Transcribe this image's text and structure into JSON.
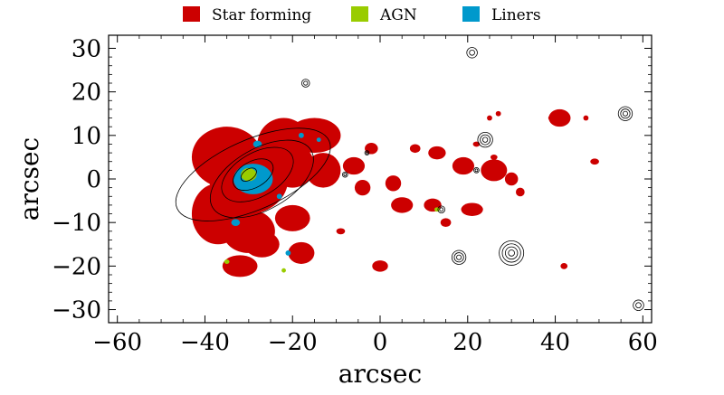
{
  "chart_data": {
    "type": "scatter",
    "xlabel": "arcsec",
    "ylabel": "arcsec",
    "xlim": [
      -62,
      62
    ],
    "ylim": [
      -33,
      33
    ],
    "xticks": [
      -60,
      -40,
      -20,
      0,
      20,
      40,
      60
    ],
    "yticks": [
      -30,
      -20,
      -10,
      0,
      10,
      20,
      30
    ],
    "xtick_labels": [
      "−60",
      "−40",
      "−20",
      "0",
      "20",
      "40",
      "60"
    ],
    "ytick_labels": [
      "−30",
      "−20",
      "−10",
      "0",
      "10",
      "20",
      "30"
    ],
    "legend": {
      "placement": "top-center",
      "entries": [
        {
          "name": "Star forming",
          "color": "#cc0000"
        },
        {
          "name": "AGN",
          "color": "#99cc00"
        },
        {
          "name": "Liners",
          "color": "#0099cc"
        }
      ]
    },
    "colors": {
      "star_forming": "#cc0000",
      "agn": "#99cc00",
      "liners": "#0099cc",
      "contour": "#000000"
    },
    "regions": {
      "star_forming": [
        {
          "x": -35,
          "y": 5,
          "rx": 8,
          "ry": 7
        },
        {
          "x": -30,
          "y": 0,
          "rx": 9,
          "ry": 8
        },
        {
          "x": -22,
          "y": 8,
          "rx": 6,
          "ry": 6
        },
        {
          "x": -15,
          "y": 10,
          "rx": 6,
          "ry": 4
        },
        {
          "x": -20,
          "y": 3,
          "rx": 5,
          "ry": 5
        },
        {
          "x": -13,
          "y": 2,
          "rx": 4,
          "ry": 4
        },
        {
          "x": -37,
          "y": -8,
          "rx": 6,
          "ry": 7
        },
        {
          "x": -30,
          "y": -12,
          "rx": 6,
          "ry": 5
        },
        {
          "x": -20,
          "y": -9,
          "rx": 4,
          "ry": 3
        },
        {
          "x": -32,
          "y": -20,
          "rx": 4,
          "ry": 2.5
        },
        {
          "x": -18,
          "y": -17,
          "rx": 3,
          "ry": 2.5
        },
        {
          "x": -27,
          "y": -15,
          "rx": 4,
          "ry": 3
        },
        {
          "x": -6,
          "y": 3,
          "rx": 2.5,
          "ry": 2
        },
        {
          "x": -4,
          "y": -2,
          "rx": 1.8,
          "ry": 1.8
        },
        {
          "x": -2,
          "y": 7,
          "rx": 1.5,
          "ry": 1.3
        },
        {
          "x": 3,
          "y": -1,
          "rx": 1.8,
          "ry": 1.8
        },
        {
          "x": 5,
          "y": -6,
          "rx": 2.5,
          "ry": 1.8
        },
        {
          "x": 8,
          "y": 7,
          "rx": 1.2,
          "ry": 1
        },
        {
          "x": 13,
          "y": 6,
          "rx": 2,
          "ry": 1.5
        },
        {
          "x": 12,
          "y": -6,
          "rx": 2,
          "ry": 1.5
        },
        {
          "x": 15,
          "y": -10,
          "rx": 1.2,
          "ry": 1
        },
        {
          "x": 19,
          "y": 3,
          "rx": 2.5,
          "ry": 2
        },
        {
          "x": 21,
          "y": -7,
          "rx": 2.5,
          "ry": 1.5
        },
        {
          "x": 26,
          "y": 2,
          "rx": 3,
          "ry": 2.5
        },
        {
          "x": 30,
          "y": 0,
          "rx": 1.5,
          "ry": 1.5
        },
        {
          "x": 32,
          "y": -3,
          "rx": 1,
          "ry": 1
        },
        {
          "x": 41,
          "y": 14,
          "rx": 2.5,
          "ry": 2
        },
        {
          "x": 0,
          "y": -20,
          "rx": 1.8,
          "ry": 1.3
        },
        {
          "x": 25,
          "y": 14,
          "rx": 0.6,
          "ry": 0.6
        },
        {
          "x": 27,
          "y": 15,
          "rx": 0.6,
          "ry": 0.6
        },
        {
          "x": 39,
          "y": 14,
          "rx": 0.6,
          "ry": 0.6
        },
        {
          "x": 47,
          "y": 14,
          "rx": 0.6,
          "ry": 0.6
        },
        {
          "x": 49,
          "y": 4,
          "rx": 1,
          "ry": 0.7
        },
        {
          "x": 42,
          "y": -20,
          "rx": 0.8,
          "ry": 0.7
        },
        {
          "x": 22,
          "y": 8,
          "rx": 0.8,
          "ry": 0.6
        },
        {
          "x": 26,
          "y": 5,
          "rx": 0.8,
          "ry": 0.6
        },
        {
          "x": -11,
          "y": 9,
          "rx": 1,
          "ry": 0.8
        },
        {
          "x": -9,
          "y": -12,
          "rx": 1,
          "ry": 0.7
        }
      ],
      "liners": [
        {
          "x": -29,
          "y": 0,
          "rx": 4.5,
          "ry": 3.5
        },
        {
          "x": -28,
          "y": 8,
          "rx": 1,
          "ry": 0.8
        },
        {
          "x": -33,
          "y": -10,
          "rx": 1,
          "ry": 0.8
        },
        {
          "x": -18,
          "y": 10,
          "rx": 0.6,
          "ry": 0.6
        },
        {
          "x": -21,
          "y": -17,
          "rx": 0.6,
          "ry": 0.6
        },
        {
          "x": -23,
          "y": -4,
          "rx": 0.6,
          "ry": 0.6
        },
        {
          "x": -14,
          "y": 9,
          "rx": 0.5,
          "ry": 0.5
        }
      ],
      "agn": [
        {
          "x": -30,
          "y": 1,
          "rx": 1.8,
          "ry": 1.5
        },
        {
          "x": 13,
          "y": -7,
          "rx": 0.6,
          "ry": 0.5
        },
        {
          "x": -35,
          "y": -19,
          "rx": 0.6,
          "ry": 0.5
        },
        {
          "x": -22,
          "y": -21,
          "rx": 0.5,
          "ry": 0.5
        }
      ]
    },
    "contour_points": [
      {
        "x": 21,
        "y": 29,
        "n": 2,
        "r": 1.2
      },
      {
        "x": -17,
        "y": 22,
        "n": 2,
        "r": 0.9
      },
      {
        "x": 56,
        "y": 15,
        "n": 3,
        "r": 1.6
      },
      {
        "x": 24,
        "y": 9,
        "n": 3,
        "r": 1.7
      },
      {
        "x": 30,
        "y": -17,
        "n": 4,
        "r": 2.8
      },
      {
        "x": 18,
        "y": -18,
        "n": 3,
        "r": 1.6
      },
      {
        "x": 59,
        "y": -29,
        "n": 2,
        "r": 1.2
      },
      {
        "x": 14,
        "y": -7,
        "n": 2,
        "r": 0.8
      },
      {
        "x": -8,
        "y": 1,
        "n": 2,
        "r": 0.6
      },
      {
        "x": -3,
        "y": 6,
        "n": 2,
        "r": 0.5
      },
      {
        "x": 22,
        "y": 2,
        "n": 2,
        "r": 0.6
      }
    ],
    "galaxy_contours": [
      {
        "x": -30,
        "y": 1,
        "rx": 2,
        "ry": 1.2,
        "angle": 35
      },
      {
        "x": -29,
        "y": 1,
        "rx": 5,
        "ry": 3,
        "angle": 30
      },
      {
        "x": -28,
        "y": 1,
        "rx": 9,
        "ry": 5,
        "angle": 30
      },
      {
        "x": -27,
        "y": 0,
        "rx": 13,
        "ry": 7,
        "angle": 30
      },
      {
        "x": -29,
        "y": 1,
        "rx": 19,
        "ry": 8,
        "angle": 24
      }
    ]
  }
}
